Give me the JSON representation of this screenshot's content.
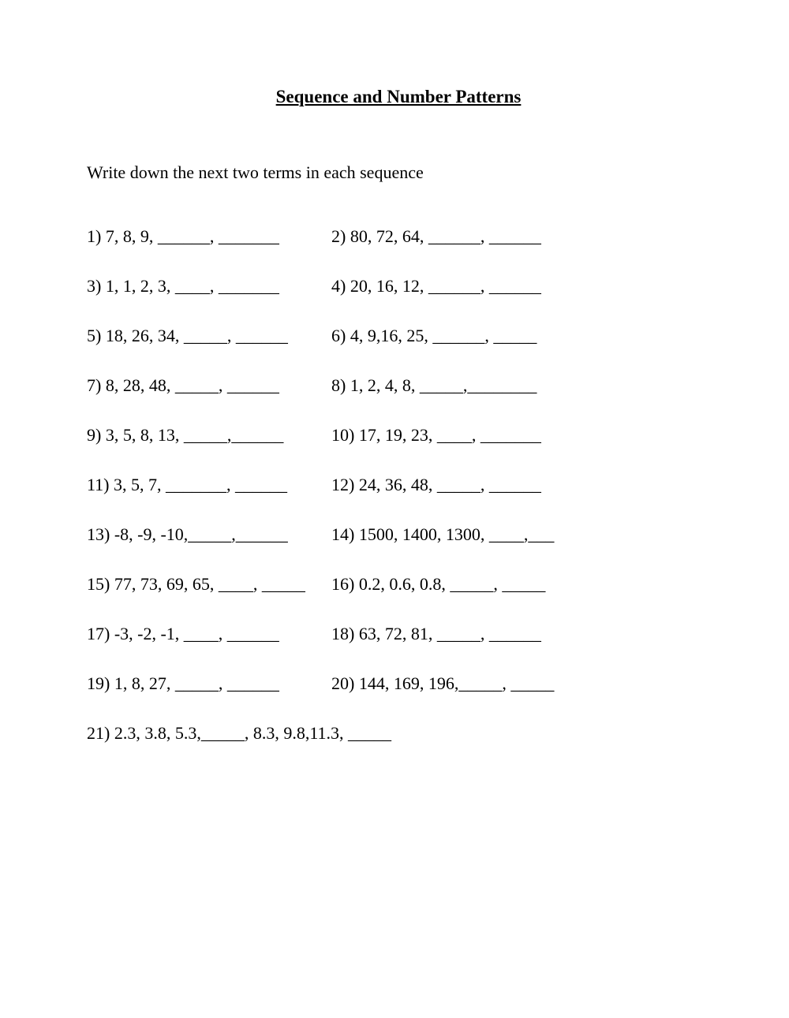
{
  "title": "Sequence and Number Patterns",
  "instruction": "Write down the next two terms in each sequence",
  "questions": [
    {
      "num": "1)",
      "text": "  7, 8, 9, ______, _______"
    },
    {
      "num": "2)",
      "text": "  80, 72, 64, ______, ______"
    },
    {
      "num": "3)",
      "text": "  1, 1, 2, 3, ____, _______"
    },
    {
      "num": "4)",
      "text": "  20, 16, 12, ______, ______"
    },
    {
      "num": "5)",
      "text": "  18, 26, 34, _____, ______"
    },
    {
      "num": " 6)",
      "text": "  4, 9,16,  25, ______, _____"
    },
    {
      "num": "7)",
      "text": "   8, 28, 48, _____, ______"
    },
    {
      "num": " 8)",
      "text": "  1, 2, 4, 8, _____,________"
    },
    {
      "num": "9)",
      "text": "  3, 5, 8, 13, _____,______"
    },
    {
      "num": " 10)",
      "text": "  17, 19, 23, ____, _______"
    },
    {
      "num": "11)",
      "text": "  3, 5, 7, _______, ______"
    },
    {
      "num": " 12)",
      "text": "  24, 36, 48, _____, ______"
    },
    {
      "num": "13)",
      "text": " -8, -9, -10,_____,______"
    },
    {
      "num": " 14)",
      "text": " 1500, 1400, 1300, ____,___"
    },
    {
      "num": "15)",
      "text": "  77, 73, 69, 65, ____, _____"
    },
    {
      "num": " 16)",
      "text": "  0.2, 0.6, 0.8, _____, _____"
    },
    {
      "num": "17)",
      "text": "  -3, -2, -1, ____, ______"
    },
    {
      "num": "  18)",
      "text": "  63, 72,  81, _____, ______"
    },
    {
      "num": "19)",
      "text": "  1, 8, 27, _____, ______"
    },
    {
      "num": "  20)",
      "text": " 144, 169, 196,_____, _____"
    },
    {
      "num": "21)",
      "text": "  2.3, 3.8, 5.3,_____, 8.3, 9.8,11.3, _____"
    }
  ]
}
